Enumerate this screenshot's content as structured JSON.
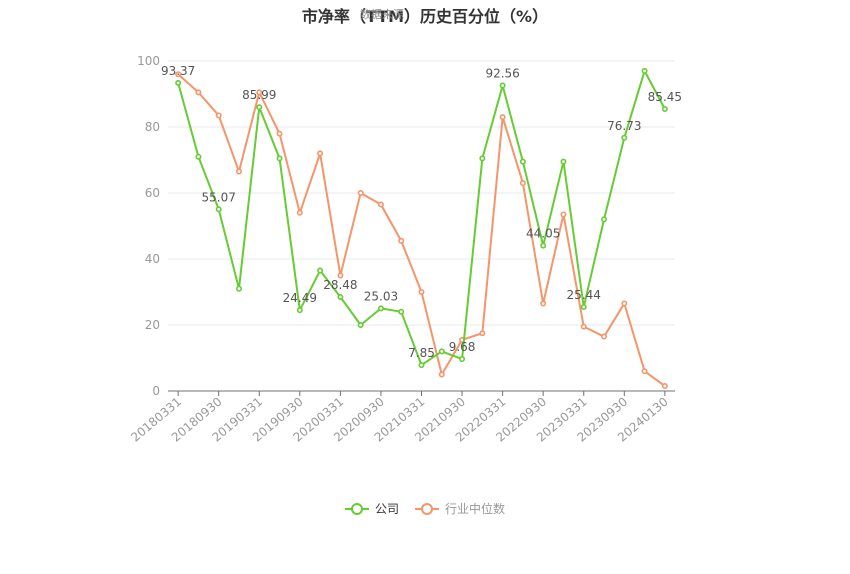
{
  "title": "市净率（TTM）历史百分位（%）",
  "watermark": "数据来源",
  "legend": {
    "company": "公司",
    "industry": "行业中位数"
  },
  "colors": {
    "company": "#66cc33",
    "industry": "#f4956a",
    "grid": "#e6e9f2",
    "axis": "#999999"
  },
  "chart_data": {
    "type": "line",
    "title": "市净率（TTM）历史百分位（%）",
    "ylim": [
      0,
      100
    ],
    "yticks": [
      0,
      20,
      40,
      60,
      80,
      100
    ],
    "grid": true,
    "legend_position": "bottom",
    "x": [
      "20180331",
      "20180630",
      "20180930",
      "20181231",
      "20190331",
      "20190630",
      "20190930",
      "20191231",
      "20200331",
      "20200630",
      "20200930",
      "20201231",
      "20210331",
      "20210630",
      "20210930",
      "20211231",
      "20220331",
      "20220630",
      "20220930",
      "20221231",
      "20230331",
      "20230630",
      "20230930",
      "20231231",
      "20240130"
    ],
    "xtick_labels": [
      "20180331",
      "20180930",
      "20190331",
      "20190930",
      "20200331",
      "20200930",
      "20210331",
      "20210930",
      "20220331",
      "20220930",
      "20230331",
      "20230930",
      "20240130"
    ],
    "series": [
      {
        "name": "公司",
        "values": [
          93.37,
          71,
          55.07,
          31,
          85.99,
          70.5,
          24.49,
          36.5,
          28.48,
          20,
          25.03,
          24,
          7.85,
          12,
          9.68,
          70.5,
          92.56,
          69.5,
          44.05,
          69.5,
          25.44,
          52,
          76.73,
          97,
          85.45
        ]
      },
      {
        "name": "行业中位数",
        "values": [
          96,
          90.5,
          83.5,
          66.5,
          90.5,
          78,
          54,
          72,
          35,
          60,
          56.5,
          45.5,
          30,
          5,
          15.5,
          17.5,
          83,
          63,
          26.5,
          53.5,
          19.5,
          16.5,
          26.5,
          6,
          1.5
        ]
      }
    ],
    "data_labels": [
      {
        "index": 0,
        "text": "93.37"
      },
      {
        "index": 2,
        "text": "55.07"
      },
      {
        "index": 4,
        "text": "85.99"
      },
      {
        "index": 6,
        "text": "24.49"
      },
      {
        "index": 8,
        "text": "28.48"
      },
      {
        "index": 10,
        "text": "25.03"
      },
      {
        "index": 12,
        "text": "7.85"
      },
      {
        "index": 14,
        "text": "9.68"
      },
      {
        "index": 16,
        "text": "92.56"
      },
      {
        "index": 18,
        "text": "44.05"
      },
      {
        "index": 20,
        "text": "25.44"
      },
      {
        "index": 22,
        "text": "76.73"
      },
      {
        "index": 24,
        "text": "85.45"
      }
    ]
  }
}
